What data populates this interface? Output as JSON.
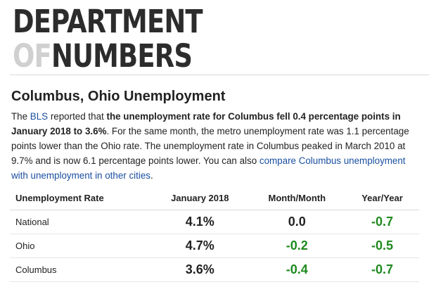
{
  "logo": {
    "line1": "DEPARTMENT",
    "line2_prefix": "OF",
    "line2_main": "NUMBERS"
  },
  "page_title": "Columbus, Ohio Unemployment",
  "intro": {
    "t1": "The ",
    "bls_link": "BLS",
    "t2": " reported that ",
    "bold": "the unemployment rate for Columbus fell 0.4 percentage points in January 2018 to 3.6%",
    "t3": ". For the same month, the metro unemployment rate was 1.1 percentage points lower than the Ohio rate. The unemployment rate in Columbus peaked in March 2010 at 9.7% and is now 6.1 percentage points lower. You can also ",
    "compare_link": "compare Columbus unemployment with unemployment in other cities",
    "t4": "."
  },
  "table": {
    "headers": [
      "Unemployment Rate",
      "January 2018",
      "Month/Month",
      "Year/Year"
    ],
    "rows": [
      {
        "label": "National",
        "rate": "4.1%",
        "mom": "0.0",
        "yoy": "-0.7"
      },
      {
        "label": "Ohio",
        "rate": "4.7%",
        "mom": "-0.2",
        "yoy": "-0.5"
      },
      {
        "label": "Columbus",
        "rate": "3.6%",
        "mom": "-0.4",
        "yoy": "-0.7"
      }
    ]
  },
  "colors": {
    "link": "#1a4fa0",
    "negative_change": "#1e8a1e",
    "logo_dark": "#2c2c2c",
    "logo_light": "#d0d0d0"
  }
}
